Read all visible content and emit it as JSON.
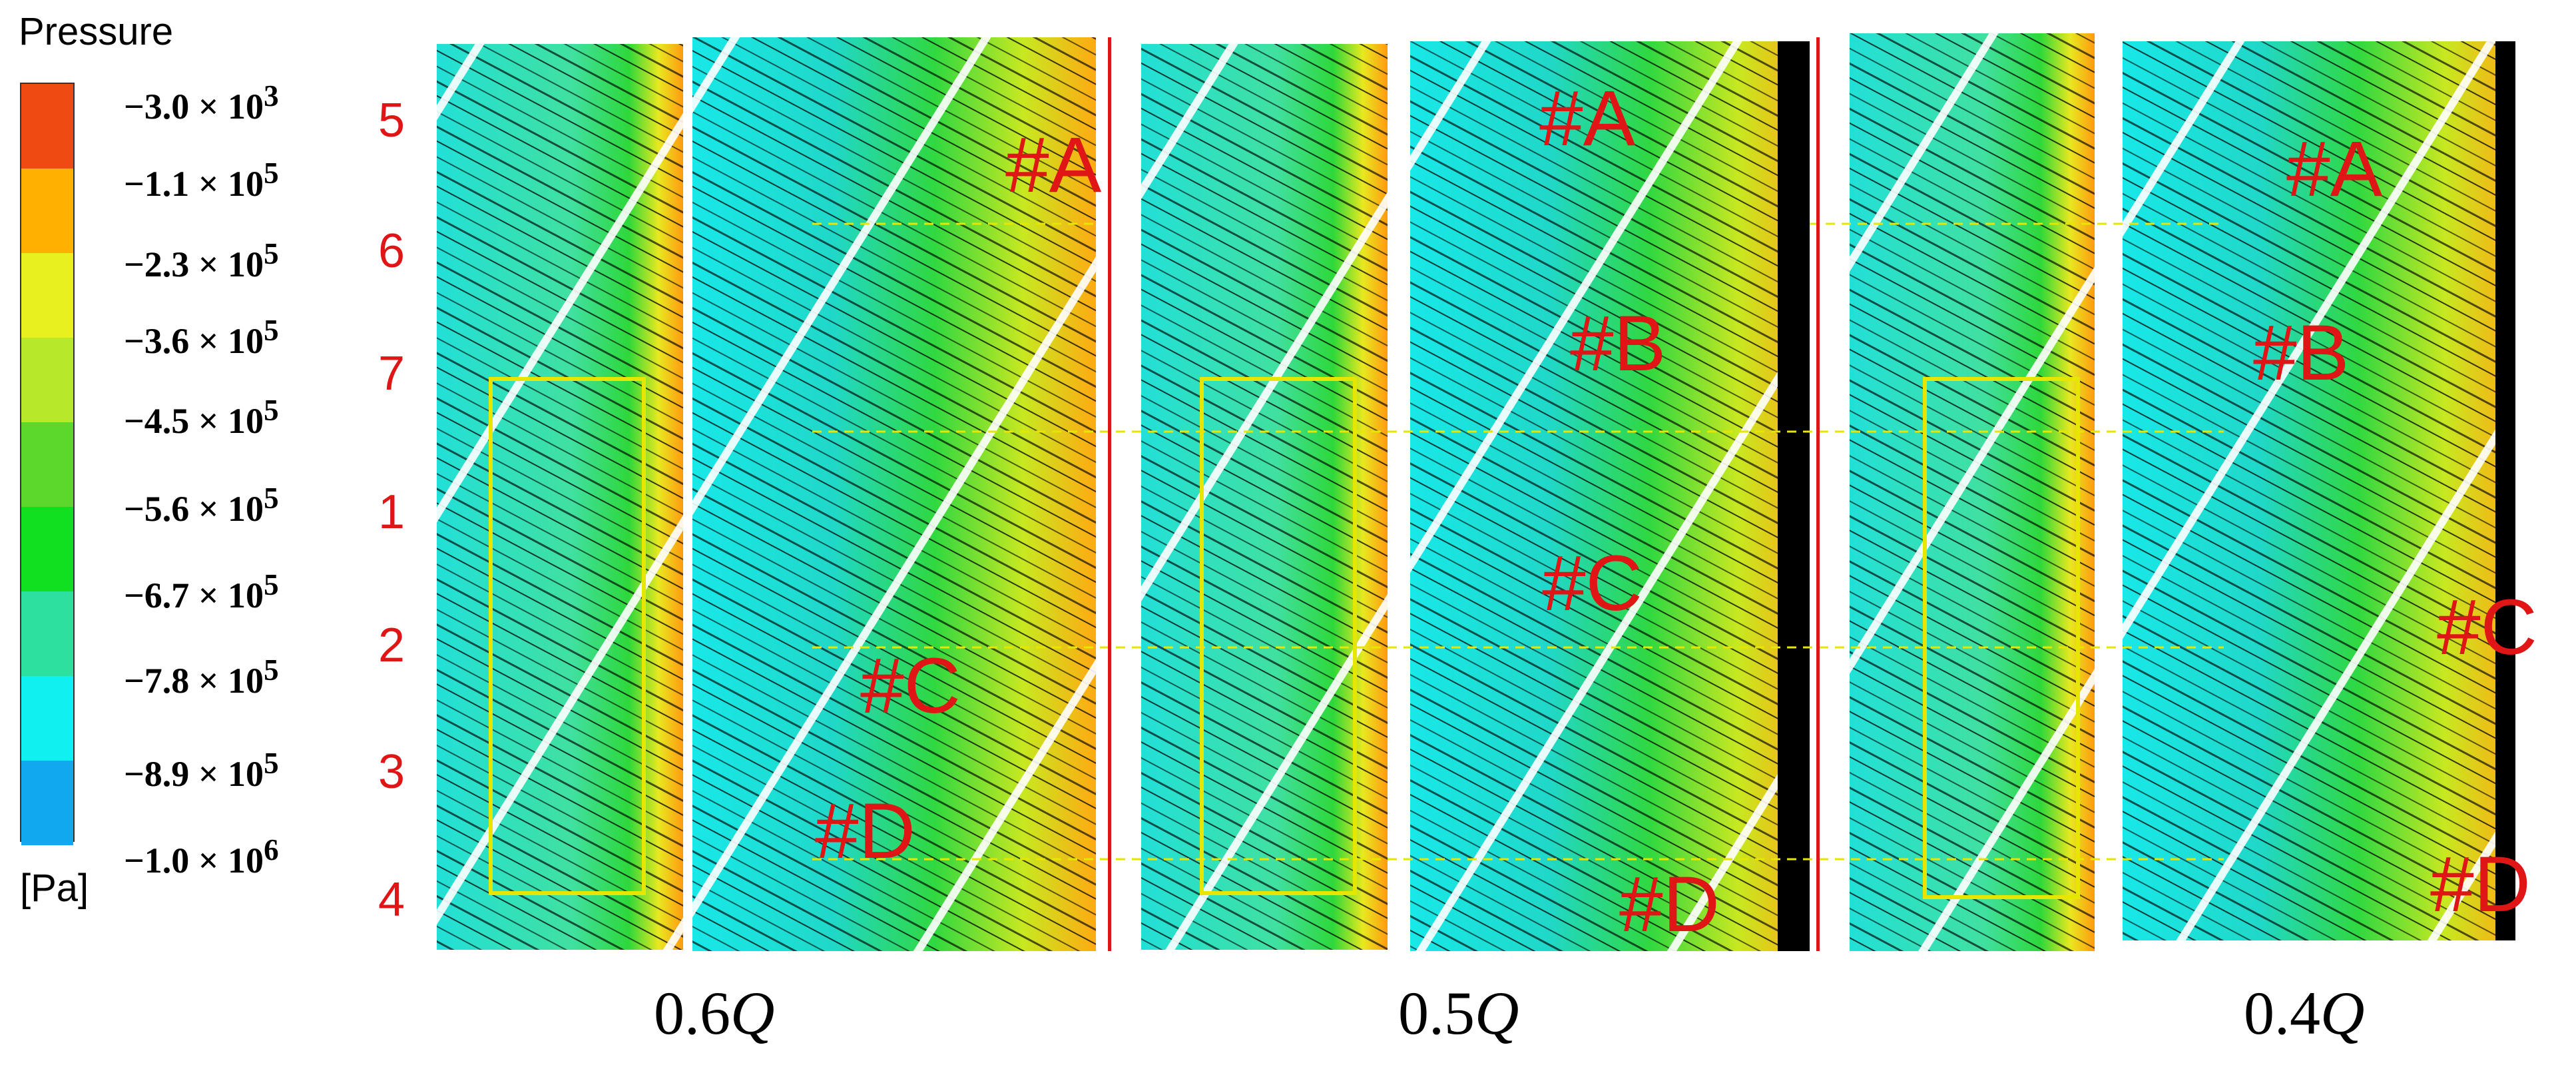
{
  "legend": {
    "title": "Pressure",
    "unit": "[Pa]",
    "ticks": [
      {
        "mantissa": "−3.0",
        "exp": "3"
      },
      {
        "mantissa": "−1.1",
        "exp": "5"
      },
      {
        "mantissa": "−2.3",
        "exp": "5"
      },
      {
        "mantissa": "−3.6",
        "exp": "5"
      },
      {
        "mantissa": "−4.5",
        "exp": "5"
      },
      {
        "mantissa": "−5.6",
        "exp": "5"
      },
      {
        "mantissa": "−6.7",
        "exp": "5"
      },
      {
        "mantissa": "−7.8",
        "exp": "5"
      },
      {
        "mantissa": "−8.9",
        "exp": "5"
      },
      {
        "mantissa": "−1.0",
        "exp": "6"
      }
    ],
    "colors": [
      "#ee4a12",
      "#ffb000",
      "#e8f020",
      "#b8e82a",
      "#5cd82c",
      "#10e020",
      "#2ee0a0",
      "#10f0f0",
      "#12a8f0",
      "#1240f0"
    ]
  },
  "row_labels": [
    "5",
    "6",
    "7",
    "1",
    "2",
    "3",
    "4"
  ],
  "conditions": [
    {
      "base": "0.6",
      "var": "Q"
    },
    {
      "base": "0.5",
      "var": "Q"
    },
    {
      "base": "0.4",
      "var": "Q"
    }
  ],
  "regions": {
    "p06": [
      "#A",
      "#C",
      "#D"
    ],
    "p05": [
      "#A",
      "#B",
      "#C",
      "#D"
    ],
    "p04": [
      "#A",
      "#B",
      "#C",
      "#D"
    ]
  },
  "colors": {
    "marker": "#e01515",
    "highlight": "#e6e600",
    "streamline": "#000000"
  }
}
